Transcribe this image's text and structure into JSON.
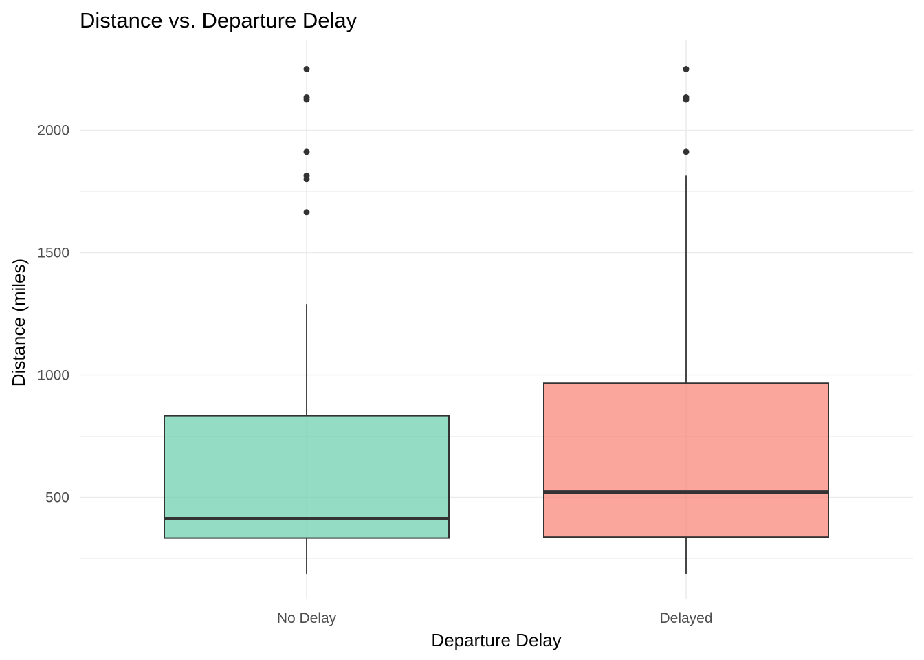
{
  "chart_data": {
    "type": "box",
    "title": "Distance vs. Departure Delay",
    "xlabel": "Departure Delay",
    "ylabel": "Distance (miles)",
    "ylim": [
      50,
      2325
    ],
    "yticks": [
      500,
      1000,
      1500,
      2000
    ],
    "grid": true,
    "legend": "none",
    "categories": [
      "No Delay",
      "Delayed"
    ],
    "series": [
      {
        "category": "No Delay",
        "color": "#66CDAA",
        "min": 187,
        "q1": 334,
        "median": 413,
        "q3": 834,
        "max": 1290,
        "outliers": [
          1665,
          1800,
          1815,
          1912,
          2125,
          2135,
          2250
        ]
      },
      {
        "category": "Delayed",
        "color": "#FA8072",
        "min": 187,
        "q1": 338,
        "median": 522,
        "q3": 967,
        "max": 1815,
        "outliers": [
          1912,
          2125,
          2135,
          2250
        ]
      }
    ]
  }
}
